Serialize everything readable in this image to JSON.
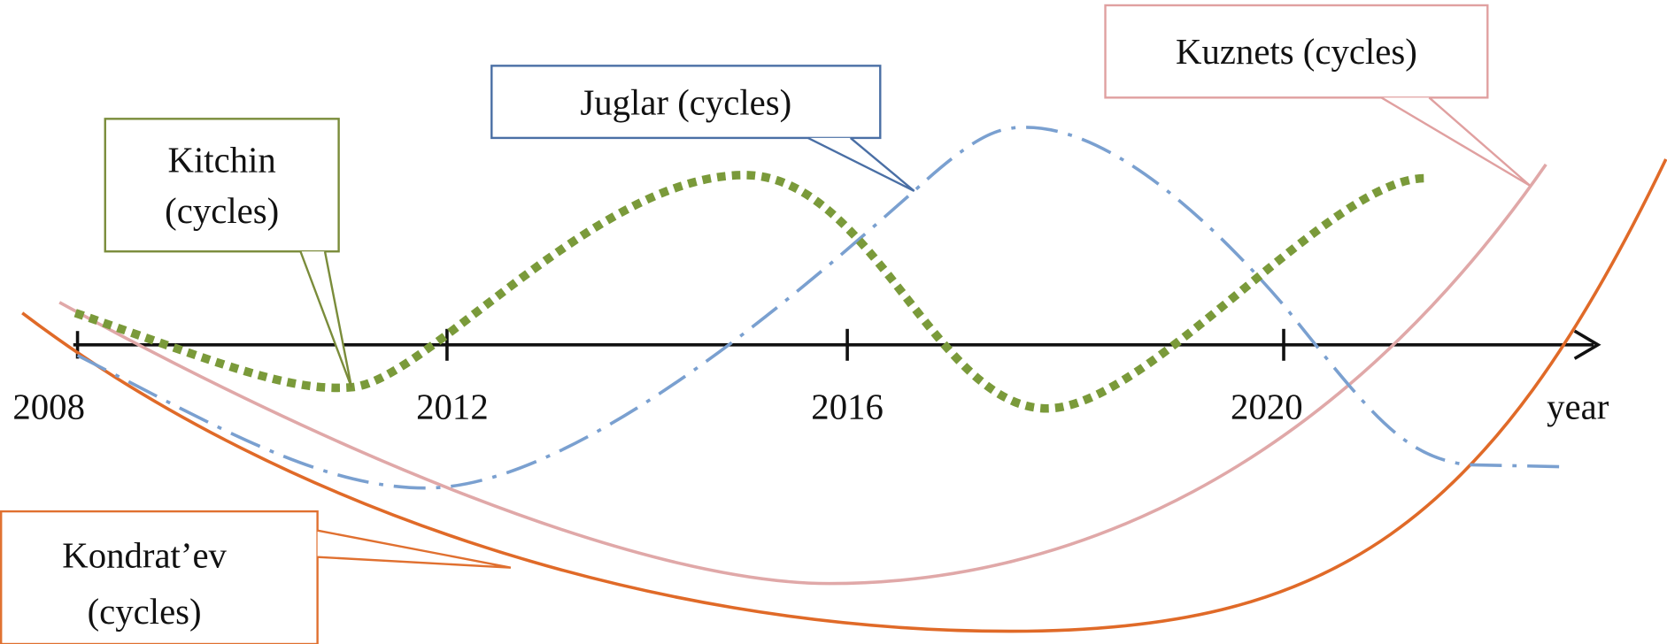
{
  "axis": {
    "ticks": [
      "2008",
      "2012",
      "2016",
      "2020"
    ],
    "label": "year"
  },
  "callouts": {
    "kitchin": {
      "lines": [
        "Kitchin",
        "(cycles)"
      ]
    },
    "juglar": {
      "lines": [
        "Juglar (cycles)"
      ]
    },
    "kuznets": {
      "lines": [
        "Kuznets (cycles)"
      ]
    },
    "kondratev": {
      "lines": [
        "Kondrat’ev",
        "(cycles)"
      ]
    }
  }
}
